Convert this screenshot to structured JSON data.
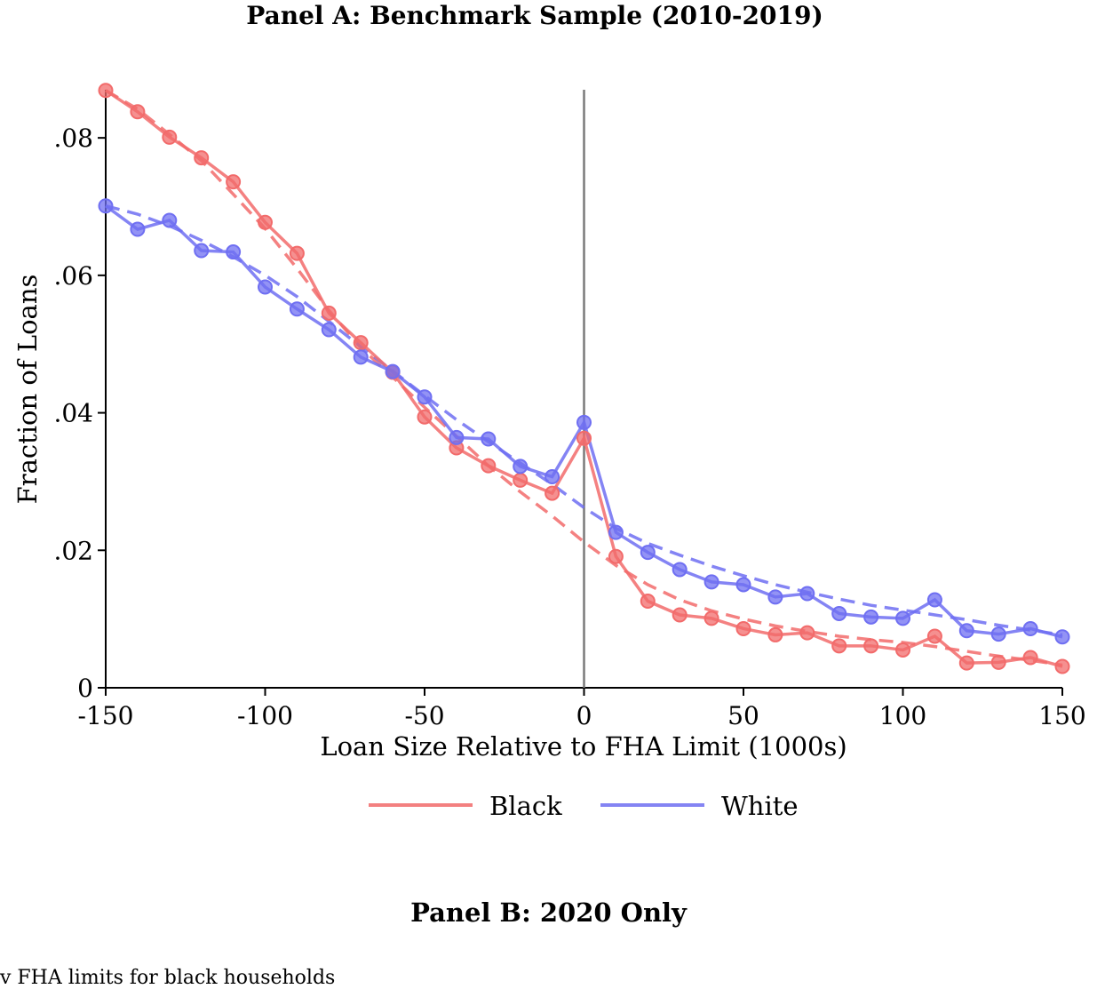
{
  "panel_b_title": "Panel B: 2020 Only",
  "caption_fragment": "v FHA limits for black households",
  "chart_data": {
    "type": "line",
    "title": "Panel A: Benchmark Sample (2010-2019)",
    "xlabel": "Loan Size Relative to FHA Limit (1000s)",
    "ylabel": "Fraction of Loans",
    "xlim": [
      -150,
      150
    ],
    "ylim": [
      0,
      0.087
    ],
    "xticks": [
      -150,
      -100,
      -50,
      0,
      50,
      100,
      150
    ],
    "xtick_labels": [
      "-150",
      "-100",
      "-50",
      "0",
      "50",
      "100",
      "150"
    ],
    "yticks": [
      0,
      0.02,
      0.04,
      0.06,
      0.08
    ],
    "ytick_labels": [
      "0",
      ".02",
      ".04",
      ".06",
      ".08"
    ],
    "vline_x": 0,
    "grid": false,
    "legend_position": "bottom",
    "x": [
      -150,
      -140,
      -130,
      -120,
      -110,
      -100,
      -90,
      -80,
      -70,
      -60,
      -50,
      -40,
      -30,
      -20,
      -10,
      0,
      10,
      20,
      30,
      40,
      50,
      60,
      70,
      80,
      90,
      100,
      110,
      120,
      130,
      140,
      150
    ],
    "series": [
      {
        "name": "Black",
        "color": "#f26b6b",
        "values": [
          0.0869,
          0.0838,
          0.0801,
          0.0771,
          0.0736,
          0.0677,
          0.0632,
          0.0545,
          0.0502,
          0.0459,
          0.0394,
          0.0349,
          0.0323,
          0.0302,
          0.0283,
          0.0363,
          0.0191,
          0.0126,
          0.0106,
          0.0101,
          0.0086,
          0.0077,
          0.008,
          0.0061,
          0.0061,
          0.0055,
          0.0075,
          0.0036,
          0.0037,
          0.0044,
          0.0031
        ],
        "fit": [
          0.0869,
          0.0842,
          0.0805,
          0.0767,
          0.0718,
          0.0668,
          0.061,
          0.0549,
          0.0495,
          0.0452,
          0.0408,
          0.0366,
          0.0323,
          0.0285,
          0.025,
          0.0212,
          0.0178,
          0.015,
          0.0128,
          0.0112,
          0.01,
          0.009,
          0.0082,
          0.0075,
          0.007,
          0.0066,
          0.006,
          0.0053,
          0.0046,
          0.004,
          0.0033
        ]
      },
      {
        "name": "White",
        "color": "#6f6ff2",
        "values": [
          0.0701,
          0.0667,
          0.068,
          0.0636,
          0.0634,
          0.0583,
          0.0551,
          0.0521,
          0.0481,
          0.046,
          0.0423,
          0.0364,
          0.0362,
          0.0322,
          0.0307,
          0.0386,
          0.0226,
          0.0197,
          0.0172,
          0.0154,
          0.015,
          0.0132,
          0.0137,
          0.0108,
          0.0103,
          0.0101,
          0.0128,
          0.0083,
          0.0078,
          0.0086,
          0.0074
        ],
        "fit": [
          0.0701,
          0.0689,
          0.0672,
          0.0651,
          0.0627,
          0.06,
          0.0569,
          0.0533,
          0.0496,
          0.0461,
          0.0425,
          0.039,
          0.0358,
          0.0327,
          0.0296,
          0.0262,
          0.0232,
          0.021,
          0.0193,
          0.0177,
          0.0163,
          0.015,
          0.0139,
          0.0129,
          0.012,
          0.0113,
          0.0106,
          0.0099,
          0.0091,
          0.0084,
          0.0077
        ]
      }
    ]
  }
}
